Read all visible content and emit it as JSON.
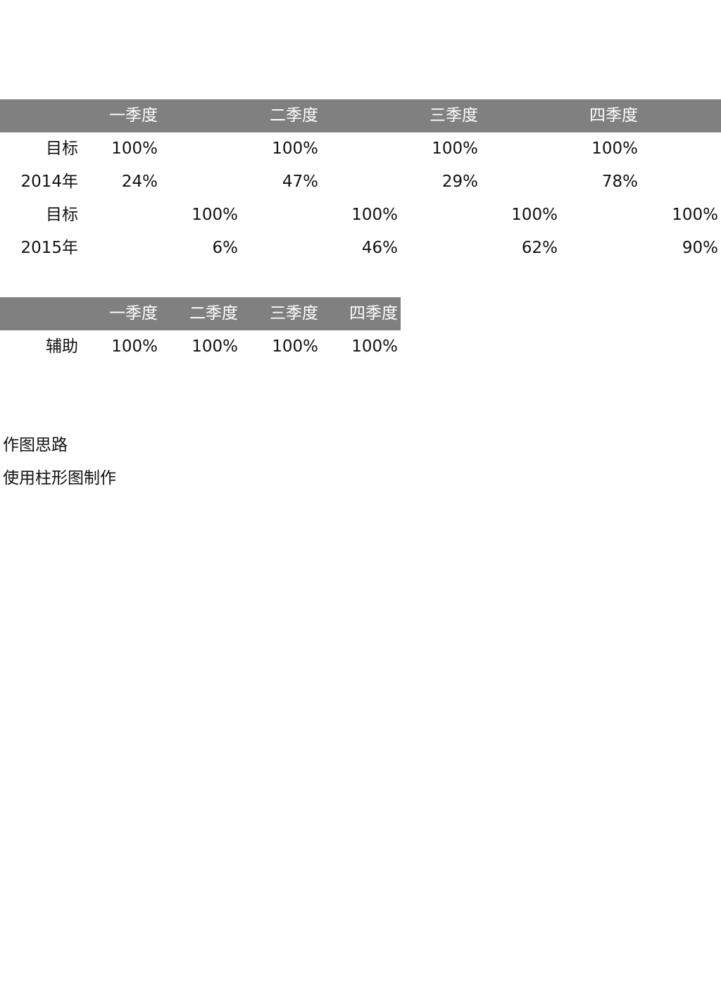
{
  "table1": {
    "quarters": [
      "一季度",
      "二季度",
      "三季度",
      "四季度"
    ],
    "rows": [
      {
        "label": "目标",
        "values": [
          "100%",
          "100%",
          "100%",
          "100%"
        ]
      },
      {
        "label": "2014年",
        "values": [
          "24%",
          "47%",
          "29%",
          "78%"
        ]
      },
      {
        "label": "目标",
        "values": [
          "100%",
          "100%",
          "100%",
          "100%"
        ]
      },
      {
        "label": "2015年",
        "values": [
          "6%",
          "46%",
          "62%",
          "90%"
        ]
      }
    ]
  },
  "table2": {
    "quarters": [
      "一季度",
      "二季度",
      "三季度",
      "四季度"
    ],
    "rows": [
      {
        "label": "辅助",
        "values": [
          "100%",
          "100%",
          "100%",
          "100%"
        ]
      }
    ]
  },
  "notes": {
    "heading": "作图思路",
    "body": "使用柱形图制作"
  }
}
